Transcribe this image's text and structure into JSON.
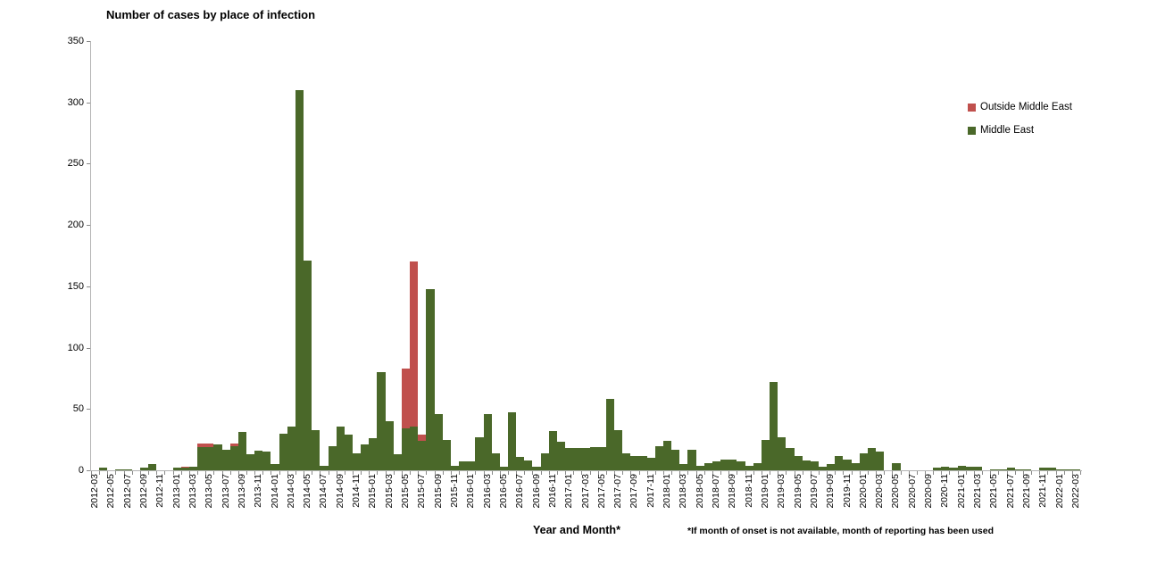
{
  "title": "Number of cases by place of infection",
  "x_axis_title": "Year and Month*",
  "footnote": "*If month of onset is not available, month of reporting has been used",
  "y_axis": {
    "min": 0,
    "max": 350,
    "tick_interval": 50,
    "tick_labels": [
      "0",
      "50",
      "100",
      "150",
      "200",
      "250",
      "300",
      "350"
    ]
  },
  "legend": {
    "items": [
      {
        "label": "Outside Middle East",
        "color": "#c0504d"
      },
      {
        "label": "Middle East",
        "color": "#4a6829"
      }
    ]
  },
  "chart_data": {
    "type": "bar",
    "stacked": true,
    "grid": false,
    "legend_position": "right",
    "title": "Number of cases by place of infection",
    "xlabel": "Year and Month*",
    "ylabel": "",
    "ylim": [
      0,
      350
    ],
    "yticks": [
      0,
      50,
      100,
      150,
      200,
      250,
      300,
      350
    ],
    "x_label_every": 2,
    "categories": [
      "2012-03",
      "2012-04",
      "2012-05",
      "2012-06",
      "2012-07",
      "2012-08",
      "2012-09",
      "2012-10",
      "2012-11",
      "2012-12",
      "2013-01",
      "2013-02",
      "2013-03",
      "2013-04",
      "2013-05",
      "2013-06",
      "2013-07",
      "2013-08",
      "2013-09",
      "2013-10",
      "2013-11",
      "2013-12",
      "2014-01",
      "2014-02",
      "2014-03",
      "2014-04",
      "2014-05",
      "2014-06",
      "2014-07",
      "2014-08",
      "2014-09",
      "2014-10",
      "2014-11",
      "2014-12",
      "2015-01",
      "2015-02",
      "2015-03",
      "2015-04",
      "2015-05",
      "2015-06",
      "2015-07",
      "2015-08",
      "2015-09",
      "2015-10",
      "2015-11",
      "2015-12",
      "2016-01",
      "2016-02",
      "2016-03",
      "2016-04",
      "2016-05",
      "2016-06",
      "2016-07",
      "2016-08",
      "2016-09",
      "2016-10",
      "2016-11",
      "2016-12",
      "2017-01",
      "2017-02",
      "2017-03",
      "2017-04",
      "2017-05",
      "2017-06",
      "2017-07",
      "2017-08",
      "2017-09",
      "2017-10",
      "2017-11",
      "2017-12",
      "2018-01",
      "2018-02",
      "2018-03",
      "2018-04",
      "2018-05",
      "2018-06",
      "2018-07",
      "2018-08",
      "2018-09",
      "2018-10",
      "2018-11",
      "2018-12",
      "2019-01",
      "2019-02",
      "2019-03",
      "2019-04",
      "2019-05",
      "2019-06",
      "2019-07",
      "2019-08",
      "2019-09",
      "2019-10",
      "2019-11",
      "2019-12",
      "2020-01",
      "2020-02",
      "2020-03",
      "2020-04",
      "2020-05",
      "2020-06",
      "2020-07",
      "2020-08",
      "2020-09",
      "2020-10",
      "2020-11",
      "2020-12",
      "2021-01",
      "2021-02",
      "2021-03",
      "2021-04",
      "2021-05",
      "2021-06",
      "2021-07",
      "2021-08",
      "2021-09",
      "2021-10",
      "2021-11",
      "2021-12",
      "2022-01",
      "2022-02",
      "2022-03"
    ],
    "series": [
      {
        "name": "Middle East",
        "color": "#4a6829",
        "values": [
          0,
          2,
          0,
          1,
          1,
          0,
          2,
          5,
          0,
          0,
          2,
          2,
          3,
          19,
          19,
          21,
          17,
          20,
          31,
          13,
          16,
          15,
          5,
          30,
          36,
          310,
          171,
          33,
          4,
          20,
          36,
          29,
          14,
          21,
          26,
          80,
          40,
          13,
          34,
          36,
          24,
          148,
          46,
          25,
          4,
          7,
          7,
          27,
          46,
          14,
          3,
          47,
          11,
          8,
          3,
          14,
          32,
          23,
          18,
          18,
          18,
          19,
          19,
          58,
          33,
          14,
          12,
          12,
          10,
          20,
          24,
          17,
          5,
          17,
          4,
          6,
          7,
          9,
          9,
          7,
          4,
          6,
          25,
          72,
          27,
          18,
          12,
          8,
          7,
          3,
          5,
          12,
          9,
          6,
          14,
          18,
          15,
          0,
          6,
          0,
          0,
          0,
          0,
          2,
          3,
          2,
          4,
          3,
          3,
          0,
          1,
          1,
          2,
          1,
          1,
          0,
          2,
          2,
          1,
          1,
          1
        ]
      },
      {
        "name": "Outside Middle East",
        "color": "#c0504d",
        "values": [
          0,
          0,
          0,
          0,
          0,
          0,
          0,
          0,
          0,
          0,
          0,
          1,
          0,
          3,
          3,
          0,
          0,
          2,
          0,
          0,
          0,
          0,
          0,
          0,
          0,
          0,
          0,
          0,
          0,
          0,
          0,
          0,
          0,
          0,
          0,
          0,
          0,
          0,
          49,
          134,
          5,
          0,
          0,
          0,
          0,
          0,
          0,
          0,
          0,
          0,
          0,
          0,
          0,
          0,
          0,
          0,
          0,
          0,
          0,
          0,
          0,
          0,
          0,
          0,
          0,
          0,
          0,
          0,
          0,
          0,
          0,
          0,
          0,
          0,
          0,
          0,
          0,
          0,
          0,
          0,
          0,
          0,
          0,
          0,
          0,
          0,
          0,
          0,
          0,
          0,
          0,
          0,
          0,
          0,
          0,
          0,
          0,
          0,
          0,
          0,
          0,
          0,
          0,
          0,
          0,
          0,
          0,
          0,
          0,
          0,
          0,
          0,
          0,
          0,
          0,
          0,
          0,
          0,
          0,
          0,
          0
        ]
      }
    ]
  }
}
